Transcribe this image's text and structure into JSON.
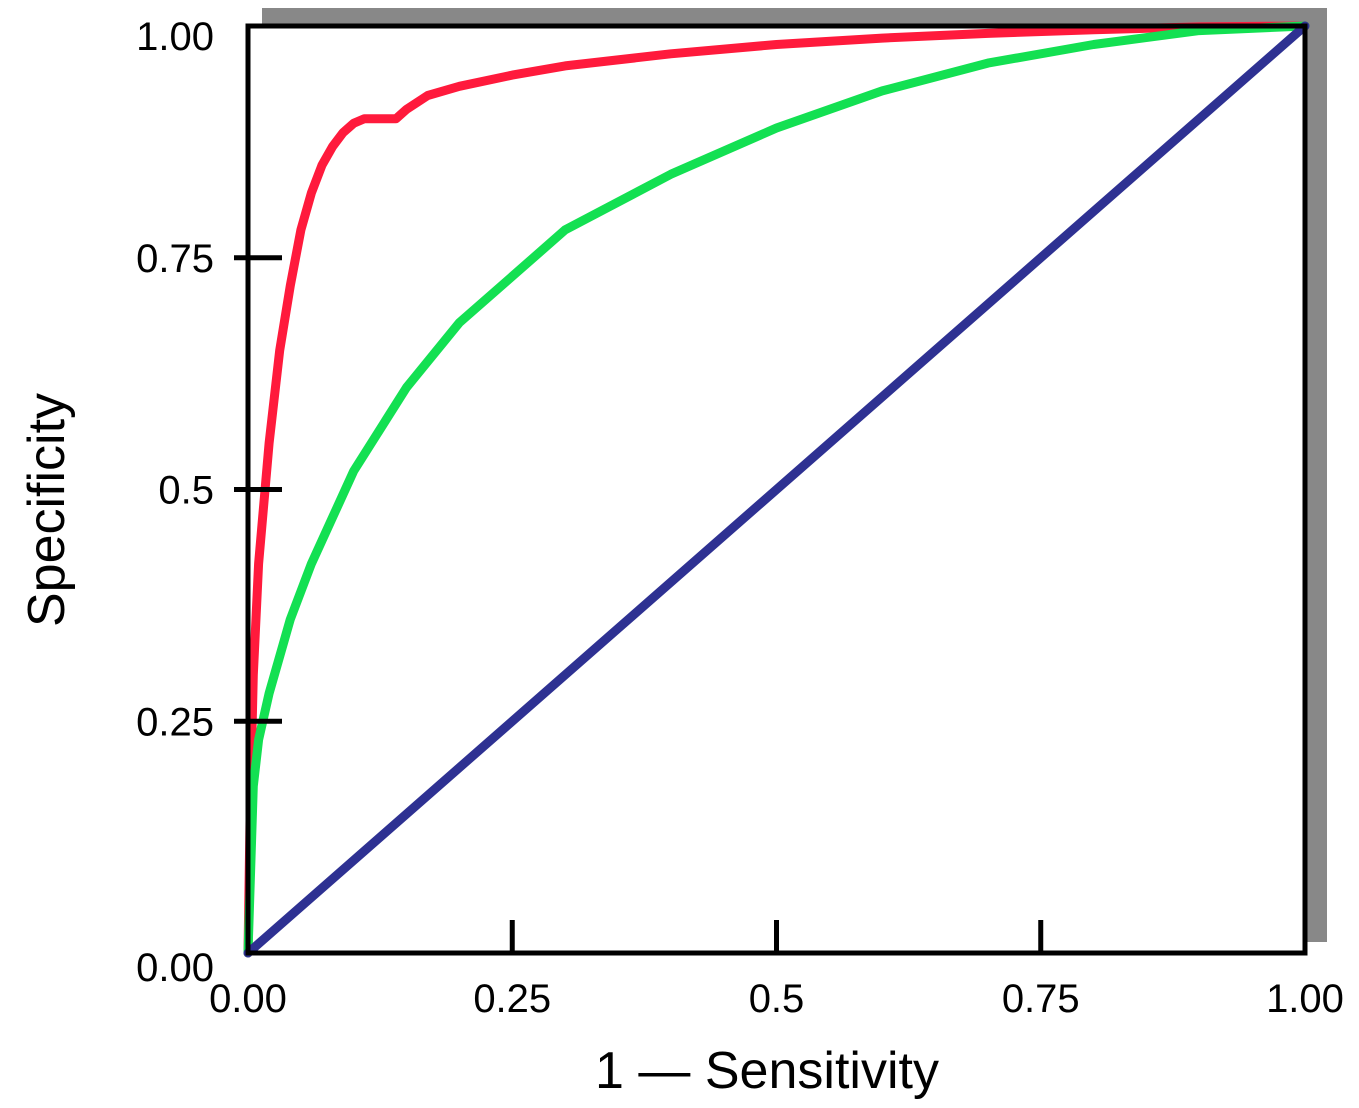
{
  "chart_data": {
    "type": "line",
    "xlabel": "1 — Sensitivity",
    "ylabel": "Specificity",
    "xlim": [
      0,
      1
    ],
    "ylim": [
      0,
      1
    ],
    "grid": false,
    "x_ticks": [
      {
        "value": 0,
        "label": "0.00"
      },
      {
        "value": 0.25,
        "label": "0.25"
      },
      {
        "value": 0.5,
        "label": "0.5"
      },
      {
        "value": 0.75,
        "label": "0.75"
      },
      {
        "value": 1,
        "label": "1.00"
      }
    ],
    "y_ticks": [
      {
        "value": 0,
        "label": "0.00"
      },
      {
        "value": 0.25,
        "label": "0.25"
      },
      {
        "value": 0.5,
        "label": "0.5"
      },
      {
        "value": 0.75,
        "label": "0.75"
      },
      {
        "value": 1,
        "label": "1.00"
      }
    ],
    "series": [
      {
        "color": "#ff1a3c",
        "x": [
          0,
          0.002,
          0.005,
          0.01,
          0.02,
          0.03,
          0.04,
          0.05,
          0.06,
          0.07,
          0.08,
          0.09,
          0.1,
          0.11,
          0.12,
          0.14,
          0.15,
          0.17,
          0.2,
          0.25,
          0.3,
          0.4,
          0.5,
          0.6,
          0.7,
          0.8,
          0.9,
          1.0
        ],
        "y": [
          0,
          0.15,
          0.3,
          0.42,
          0.55,
          0.65,
          0.72,
          0.78,
          0.82,
          0.85,
          0.87,
          0.885,
          0.895,
          0.9,
          0.9,
          0.9,
          0.91,
          0.925,
          0.935,
          0.947,
          0.957,
          0.97,
          0.98,
          0.987,
          0.992,
          0.996,
          0.999,
          1.0
        ]
      },
      {
        "color": "#13e052",
        "x": [
          0,
          0.005,
          0.01,
          0.02,
          0.04,
          0.06,
          0.08,
          0.1,
          0.15,
          0.2,
          0.25,
          0.3,
          0.4,
          0.5,
          0.6,
          0.7,
          0.8,
          0.9,
          1.0
        ],
        "y": [
          0,
          0.18,
          0.23,
          0.28,
          0.36,
          0.42,
          0.47,
          0.52,
          0.61,
          0.68,
          0.73,
          0.78,
          0.84,
          0.89,
          0.93,
          0.96,
          0.98,
          0.995,
          1.0
        ]
      },
      {
        "color": "#2e3192",
        "x": [
          0,
          1
        ],
        "y": [
          0,
          1
        ]
      }
    ]
  }
}
